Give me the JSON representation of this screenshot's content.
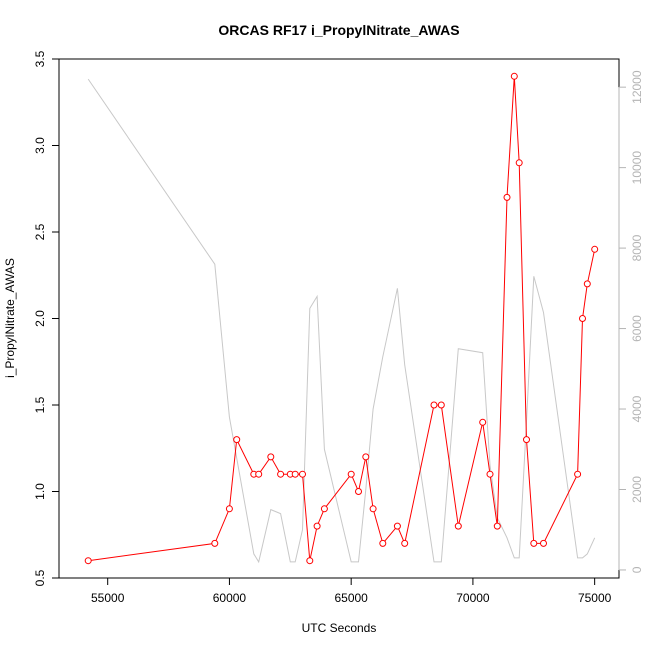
{
  "chart_data": {
    "type": "line",
    "title": "ORCAS RF17 i_PropylNitrate_AWAS",
    "xlabel": "UTC Seconds",
    "ylabel": "i_PropylNitrate_AWAS",
    "y2label": "",
    "xlim": [
      53000,
      76000
    ],
    "ylim": [
      0.5,
      3.5
    ],
    "y2lim": [
      -200,
      12700
    ],
    "x_ticks": [
      55000,
      60000,
      65000,
      70000,
      75000
    ],
    "x_tick_labels": [
      "55000",
      "60000",
      "65000",
      "70000",
      "75000"
    ],
    "y_ticks": [
      0.5,
      1.0,
      1.5,
      2.0,
      2.5,
      3.0,
      3.5
    ],
    "y_tick_labels": [
      "0.5",
      "1.0",
      "1.5",
      "2.0",
      "2.5",
      "3.0",
      "3.5"
    ],
    "y2_ticks": [
      0,
      2000,
      4000,
      6000,
      8000,
      10000,
      12000
    ],
    "y2_tick_labels": [
      "0",
      "2000",
      "4000",
      "6000",
      "8000",
      "10000",
      "12000"
    ],
    "grid": false,
    "colors": {
      "primary": "#ff0000",
      "secondary": "#c8c8c8",
      "axis": "#000000",
      "axis2": "#b4b4b4"
    },
    "series": [
      {
        "axis": "left",
        "style": "line+points",
        "x": [
          54200,
          59400,
          60000,
          60300,
          61000,
          61200,
          61700,
          62100,
          62500,
          62700,
          63000,
          63300,
          63600,
          63900,
          65000,
          65300,
          65600,
          65900,
          66300,
          66900,
          67200,
          68400,
          68700,
          69400,
          70400,
          70700,
          71000,
          71400,
          71700,
          71900,
          72200,
          72500,
          72900,
          74300,
          74500,
          74700,
          75000
        ],
        "values": [
          0.6,
          0.7,
          0.9,
          1.3,
          1.1,
          1.1,
          1.2,
          1.1,
          1.1,
          1.1,
          1.1,
          0.6,
          0.8,
          0.9,
          1.1,
          1.0,
          1.2,
          0.9,
          0.7,
          0.8,
          0.7,
          1.5,
          1.5,
          0.8,
          1.4,
          1.1,
          0.8,
          2.7,
          3.4,
          2.9,
          1.3,
          0.7,
          0.7,
          1.1,
          2.0,
          2.2,
          2.4
        ]
      },
      {
        "axis": "right",
        "style": "line",
        "x": [
          54200,
          59400,
          60000,
          61000,
          61200,
          61700,
          62100,
          62500,
          62700,
          63000,
          63300,
          63600,
          63900,
          65000,
          65300,
          65600,
          65900,
          66300,
          66900,
          67200,
          68400,
          68700,
          69400,
          70400,
          70700,
          71000,
          71400,
          71700,
          71900,
          72200,
          72500,
          72900,
          74300,
          74500,
          74700,
          75000
        ],
        "values": [
          12200,
          7600,
          3800,
          400,
          200,
          1500,
          1400,
          200,
          200,
          1000,
          6500,
          6800,
          3000,
          200,
          200,
          2000,
          4000,
          5300,
          7000,
          5100,
          200,
          200,
          5500,
          5400,
          2600,
          1300,
          800,
          300,
          300,
          3700,
          7300,
          6400,
          300,
          300,
          400,
          800
        ]
      }
    ]
  }
}
